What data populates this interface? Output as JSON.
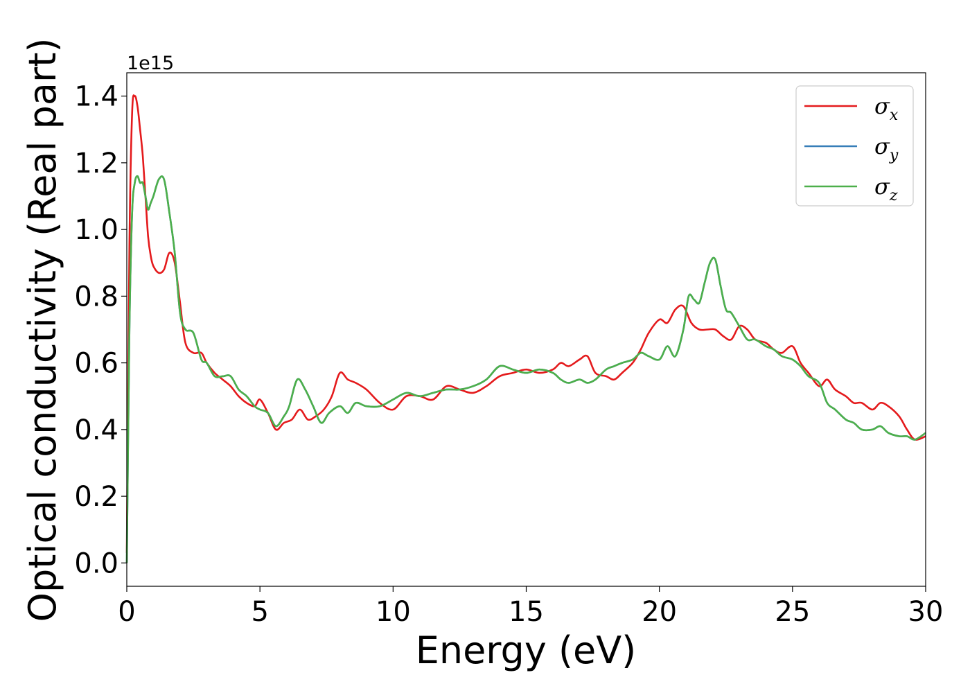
{
  "chart_data": {
    "type": "line",
    "title": "",
    "xlabel": "Energy (eV)",
    "ylabel": "Optical conductivity (Real part)",
    "y_offset_text": "1e15",
    "xlim": [
      0,
      30
    ],
    "ylim": [
      -0.07,
      1.47
    ],
    "x_ticks": [
      "0",
      "5",
      "10",
      "15",
      "20",
      "25",
      "30"
    ],
    "y_ticks": [
      "0.0",
      "0.2",
      "0.4",
      "0.6",
      "0.8",
      "1.0",
      "1.2",
      "1.4"
    ],
    "grid": false,
    "legend_position": "top-right",
    "series": [
      {
        "name": "σx",
        "legend": {
          "symbol": "σ",
          "sub": "x"
        },
        "color": "#e41a1c",
        "x": [
          0,
          0.1,
          0.2,
          0.3,
          0.4,
          0.5,
          0.6,
          0.7,
          0.8,
          0.9,
          1.0,
          1.2,
          1.4,
          1.6,
          1.8,
          2.0,
          2.2,
          2.5,
          2.8,
          3.0,
          3.3,
          3.6,
          3.9,
          4.2,
          4.5,
          4.8,
          5.0,
          5.3,
          5.6,
          5.9,
          6.2,
          6.5,
          6.8,
          7.1,
          7.4,
          7.7,
          8.0,
          8.3,
          8.6,
          9.0,
          9.5,
          10.0,
          10.5,
          11.0,
          11.5,
          12.0,
          12.5,
          13.0,
          13.5,
          14.0,
          14.5,
          15.0,
          15.5,
          16.0,
          16.3,
          16.6,
          17.0,
          17.3,
          17.6,
          18.0,
          18.3,
          18.6,
          19.0,
          19.3,
          19.6,
          20.0,
          20.3,
          20.6,
          20.9,
          21.2,
          21.5,
          21.8,
          22.1,
          22.4,
          22.7,
          23.0,
          23.3,
          23.6,
          24.0,
          24.3,
          24.6,
          25.0,
          25.3,
          25.6,
          26.0,
          26.3,
          26.6,
          27.0,
          27.3,
          27.6,
          28.0,
          28.3,
          28.6,
          29.0,
          29.3,
          29.6,
          30.0
        ],
        "y": [
          0.03,
          0.95,
          1.35,
          1.4,
          1.37,
          1.3,
          1.22,
          1.1,
          0.98,
          0.92,
          0.89,
          0.87,
          0.88,
          0.93,
          0.9,
          0.78,
          0.66,
          0.63,
          0.63,
          0.6,
          0.57,
          0.55,
          0.53,
          0.5,
          0.48,
          0.47,
          0.49,
          0.45,
          0.4,
          0.42,
          0.43,
          0.46,
          0.43,
          0.44,
          0.46,
          0.5,
          0.57,
          0.55,
          0.54,
          0.52,
          0.48,
          0.46,
          0.5,
          0.5,
          0.49,
          0.53,
          0.52,
          0.51,
          0.53,
          0.56,
          0.57,
          0.58,
          0.57,
          0.58,
          0.6,
          0.59,
          0.61,
          0.62,
          0.57,
          0.56,
          0.55,
          0.57,
          0.6,
          0.64,
          0.69,
          0.73,
          0.72,
          0.76,
          0.77,
          0.72,
          0.7,
          0.7,
          0.7,
          0.68,
          0.67,
          0.71,
          0.7,
          0.67,
          0.66,
          0.64,
          0.63,
          0.65,
          0.6,
          0.57,
          0.53,
          0.55,
          0.52,
          0.5,
          0.48,
          0.48,
          0.46,
          0.48,
          0.47,
          0.44,
          0.4,
          0.37,
          0.38
        ]
      },
      {
        "name": "σy",
        "legend": {
          "symbol": "σ",
          "sub": "y"
        },
        "color": "#377eb8",
        "x": [
          0,
          0.1,
          0.2,
          0.3,
          0.4,
          0.5,
          0.6,
          0.7,
          0.8,
          0.9,
          1.0,
          1.2,
          1.4,
          1.6,
          1.8,
          2.0,
          2.2,
          2.5,
          2.8,
          3.0,
          3.3,
          3.6,
          3.9,
          4.2,
          4.5,
          4.8,
          5.0,
          5.3,
          5.6,
          5.9,
          6.1,
          6.4,
          6.7,
          7.0,
          7.3,
          7.6,
          8.0,
          8.3,
          8.6,
          9.0,
          9.5,
          10.0,
          10.5,
          11.0,
          11.5,
          12.0,
          12.5,
          13.0,
          13.5,
          14.0,
          14.5,
          15.0,
          15.5,
          16.0,
          16.3,
          16.6,
          17.0,
          17.3,
          17.6,
          18.0,
          18.3,
          18.6,
          19.0,
          19.3,
          19.6,
          20.0,
          20.3,
          20.6,
          20.9,
          21.1,
          21.3,
          21.5,
          21.7,
          21.9,
          22.1,
          22.3,
          22.5,
          22.7,
          23.0,
          23.3,
          23.6,
          24.0,
          24.3,
          24.6,
          25.0,
          25.3,
          25.6,
          26.0,
          26.3,
          26.6,
          27.0,
          27.3,
          27.6,
          28.0,
          28.3,
          28.6,
          29.0,
          29.3,
          29.6,
          30.0
        ],
        "y": [
          0.0,
          0.7,
          1.05,
          1.14,
          1.16,
          1.14,
          1.14,
          1.1,
          1.06,
          1.08,
          1.1,
          1.15,
          1.15,
          1.05,
          0.93,
          0.75,
          0.7,
          0.69,
          0.61,
          0.6,
          0.56,
          0.56,
          0.56,
          0.52,
          0.5,
          0.47,
          0.46,
          0.45,
          0.41,
          0.44,
          0.47,
          0.55,
          0.52,
          0.47,
          0.42,
          0.45,
          0.47,
          0.45,
          0.48,
          0.47,
          0.47,
          0.49,
          0.51,
          0.5,
          0.51,
          0.52,
          0.52,
          0.53,
          0.55,
          0.59,
          0.58,
          0.57,
          0.58,
          0.57,
          0.55,
          0.54,
          0.55,
          0.54,
          0.55,
          0.58,
          0.59,
          0.6,
          0.61,
          0.63,
          0.62,
          0.61,
          0.65,
          0.62,
          0.7,
          0.8,
          0.79,
          0.78,
          0.84,
          0.9,
          0.91,
          0.83,
          0.76,
          0.75,
          0.71,
          0.67,
          0.67,
          0.65,
          0.64,
          0.62,
          0.61,
          0.59,
          0.56,
          0.54,
          0.48,
          0.46,
          0.43,
          0.42,
          0.4,
          0.4,
          0.41,
          0.39,
          0.38,
          0.38,
          0.37,
          0.39
        ]
      },
      {
        "name": "σz",
        "legend": {
          "symbol": "σ",
          "sub": "z"
        },
        "color": "#4daf4a",
        "x": [
          0,
          0.1,
          0.2,
          0.3,
          0.4,
          0.5,
          0.6,
          0.7,
          0.8,
          0.9,
          1.0,
          1.2,
          1.4,
          1.6,
          1.8,
          2.0,
          2.2,
          2.5,
          2.8,
          3.0,
          3.3,
          3.6,
          3.9,
          4.2,
          4.5,
          4.8,
          5.0,
          5.3,
          5.6,
          5.9,
          6.1,
          6.4,
          6.7,
          7.0,
          7.3,
          7.6,
          8.0,
          8.3,
          8.6,
          9.0,
          9.5,
          10.0,
          10.5,
          11.0,
          11.5,
          12.0,
          12.5,
          13.0,
          13.5,
          14.0,
          14.5,
          15.0,
          15.5,
          16.0,
          16.3,
          16.6,
          17.0,
          17.3,
          17.6,
          18.0,
          18.3,
          18.6,
          19.0,
          19.3,
          19.6,
          20.0,
          20.3,
          20.6,
          20.9,
          21.1,
          21.3,
          21.5,
          21.7,
          21.9,
          22.1,
          22.3,
          22.5,
          22.7,
          23.0,
          23.3,
          23.6,
          24.0,
          24.3,
          24.6,
          25.0,
          25.3,
          25.6,
          26.0,
          26.3,
          26.6,
          27.0,
          27.3,
          27.6,
          28.0,
          28.3,
          28.6,
          29.0,
          29.3,
          29.6,
          30.0
        ],
        "y": [
          0.0,
          0.7,
          1.05,
          1.14,
          1.16,
          1.14,
          1.14,
          1.1,
          1.06,
          1.08,
          1.1,
          1.15,
          1.15,
          1.05,
          0.93,
          0.75,
          0.7,
          0.69,
          0.61,
          0.6,
          0.56,
          0.56,
          0.56,
          0.52,
          0.5,
          0.47,
          0.46,
          0.45,
          0.41,
          0.44,
          0.47,
          0.55,
          0.52,
          0.47,
          0.42,
          0.45,
          0.47,
          0.45,
          0.48,
          0.47,
          0.47,
          0.49,
          0.51,
          0.5,
          0.51,
          0.52,
          0.52,
          0.53,
          0.55,
          0.59,
          0.58,
          0.57,
          0.58,
          0.57,
          0.55,
          0.54,
          0.55,
          0.54,
          0.55,
          0.58,
          0.59,
          0.6,
          0.61,
          0.63,
          0.62,
          0.61,
          0.65,
          0.62,
          0.7,
          0.8,
          0.79,
          0.78,
          0.84,
          0.9,
          0.91,
          0.83,
          0.76,
          0.75,
          0.71,
          0.67,
          0.67,
          0.65,
          0.64,
          0.62,
          0.61,
          0.59,
          0.56,
          0.54,
          0.48,
          0.46,
          0.43,
          0.42,
          0.4,
          0.4,
          0.41,
          0.39,
          0.38,
          0.38,
          0.37,
          0.39
        ]
      }
    ]
  }
}
